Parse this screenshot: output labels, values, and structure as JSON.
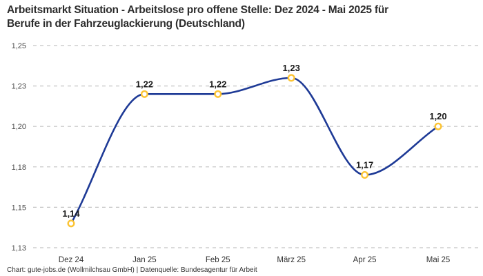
{
  "header": {
    "title_lines": [
      "Arbeitsmarkt Situation - Arbeitslose pro offene Stelle: Dez 2024 - Mai 2025 für",
      "Berufe in der Fahrzeuglackierung (Deutschland)"
    ]
  },
  "footer": {
    "source": "Chart: gute-jobs.de (Wollmilchsau GmbH) | Datenquelle: Bundesagentur für Arbeit"
  },
  "chart_data": {
    "type": "line",
    "title": "Arbeitsmarkt Situation - Arbeitslose pro offene Stelle: Dez 2024 - Mai 2025 für Berufe in der Fahrzeuglackierung (Deutschland)",
    "categories": [
      "Dez 24",
      "Jan 25",
      "Feb 25",
      "März 25",
      "Apr 25",
      "Mai 25"
    ],
    "values": [
      1.14,
      1.22,
      1.22,
      1.23,
      1.17,
      1.2
    ],
    "point_labels": [
      "1,14",
      "1,22",
      "1,22",
      "1,23",
      "1,17",
      "1,20"
    ],
    "xlabel": "",
    "ylabel": "",
    "ylim": [
      1.125,
      1.25
    ],
    "y_ticks": [
      {
        "value": 1.25,
        "label": "1,25"
      },
      {
        "value": 1.225,
        "label": "1,23"
      },
      {
        "value": 1.2,
        "label": "1,20"
      },
      {
        "value": 1.175,
        "label": "1,18"
      },
      {
        "value": 1.15,
        "label": "1,15"
      },
      {
        "value": 1.125,
        "label": "1,13"
      }
    ],
    "grid": "horizontal-dashed",
    "legend": "none",
    "curve": "monotone",
    "colors": {
      "line": "#1e3a96",
      "marker_stroke": "#fcc434",
      "marker_fill": "#ffffff",
      "grid": "#c3c3c3",
      "data_label": "#1a1a1a",
      "y_tick_label": "#4a4a4a",
      "x_tick_label": "#333333",
      "title": "#2d2d2d",
      "footer": "#333333"
    }
  }
}
